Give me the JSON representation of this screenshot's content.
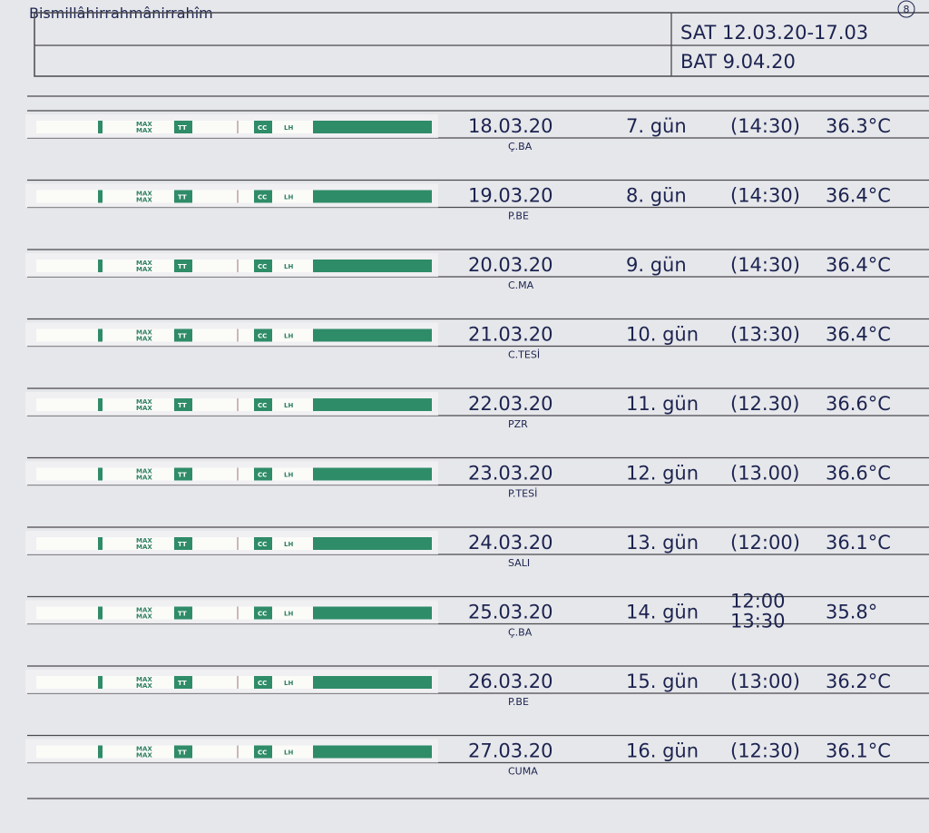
{
  "header": {
    "title": "Bismillâhirrahmânirrahîm",
    "page_number": "8",
    "sat": "SAT 12.03.20-17.03",
    "bat": "BAT 9.04.20"
  },
  "strip": {
    "max": "MAX",
    "tt": "TT",
    "cc": "CC",
    "lh": "LH"
  },
  "rows": [
    {
      "date": "18.03.20",
      "weekday": "Ç.BA",
      "day": "7. gün",
      "times": [
        "(14:30)"
      ],
      "temp": "36.3°C"
    },
    {
      "date": "19.03.20",
      "weekday": "P.BE",
      "day": "8. gün",
      "times": [
        "(14:30)"
      ],
      "temp": "36.4°C"
    },
    {
      "date": "20.03.20",
      "weekday": "C.MA",
      "day": "9. gün",
      "times": [
        "(14:30)"
      ],
      "temp": "36.4°C"
    },
    {
      "date": "21.03.20",
      "weekday": "C.TESİ",
      "day": "10. gün",
      "times": [
        "(13:30)"
      ],
      "temp": "36.4°C"
    },
    {
      "date": "22.03.20",
      "weekday": "PZR",
      "day": "11. gün",
      "times": [
        "(12.30)"
      ],
      "temp": "36.6°C"
    },
    {
      "date": "23.03.20",
      "weekday": "P.TESİ",
      "day": "12. gün",
      "times": [
        "(13.00)"
      ],
      "temp": "36.6°C"
    },
    {
      "date": "24.03.20",
      "weekday": "SALI",
      "day": "13. gün",
      "times": [
        "(12:00)"
      ],
      "temp": "36.1°C"
    },
    {
      "date": "25.03.20",
      "weekday": "Ç.BA",
      "day": "14. gün",
      "times": [
        "12:00",
        "13:30"
      ],
      "temp": "35.8°"
    },
    {
      "date": "26.03.20",
      "weekday": "P.BE",
      "day": "15. gün",
      "times": [
        "(13:00)"
      ],
      "temp": "36.2°C"
    },
    {
      "date": "27.03.20",
      "weekday": "CUMA",
      "day": "16. gün",
      "times": [
        "(12:30)"
      ],
      "temp": "36.1°C"
    }
  ]
}
